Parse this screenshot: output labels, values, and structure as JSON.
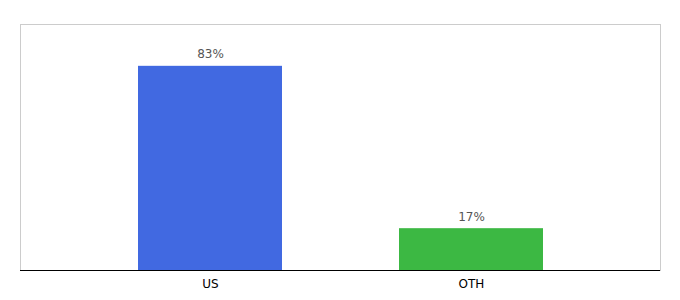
{
  "chart_data": {
    "type": "bar",
    "categories": [
      "US",
      "OTH"
    ],
    "values": [
      83,
      17
    ],
    "value_labels": [
      "83%",
      "17%"
    ],
    "colors": [
      "#4169e1",
      "#3cb843"
    ],
    "ylim": [
      0,
      100
    ],
    "data_labels": true,
    "tick_labels": "x"
  }
}
